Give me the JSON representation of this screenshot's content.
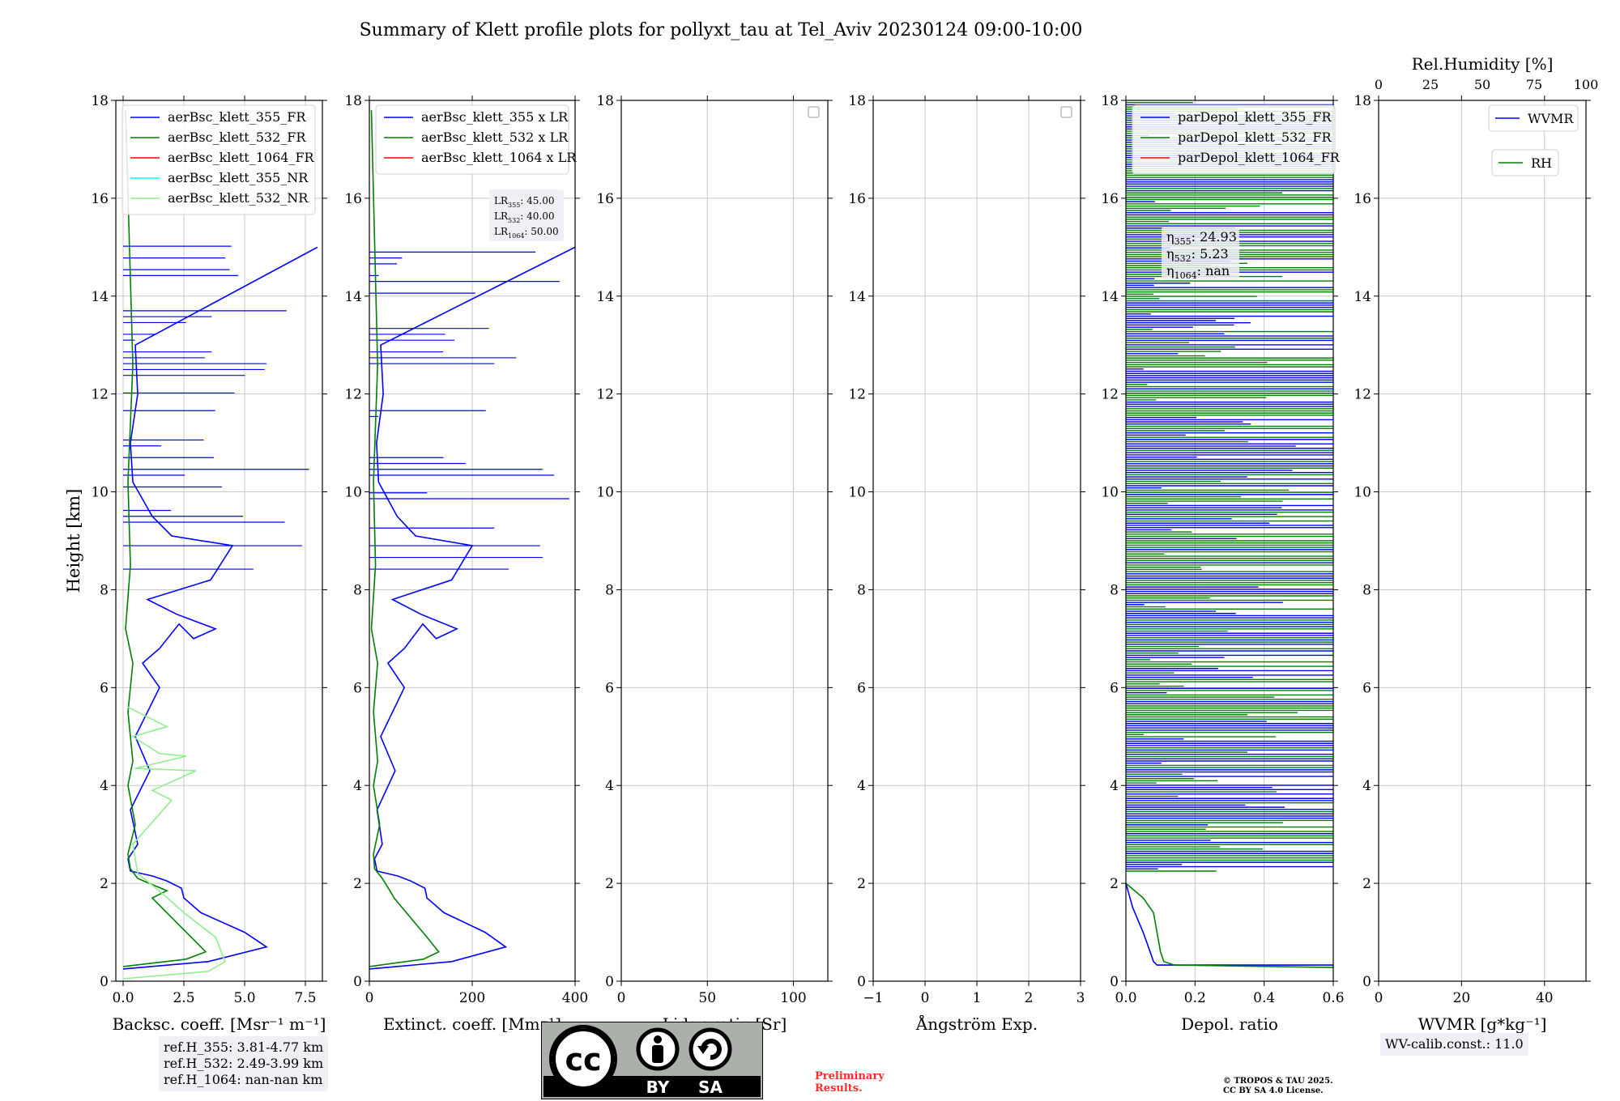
{
  "title": "Summary of Klett profile plots for pollyxt_tau at Tel_Aviv 20230124 09:00-10:00",
  "ref_heights": [
    "ref.H_355: 3.81-4.77 km",
    "ref.H_532: 2.49-3.99 km",
    "ref.H_1064: nan-nan km"
  ],
  "wv_calib": "WV-calib.const.: 11.0",
  "preliminary": [
    "Preliminary",
    "Results."
  ],
  "copyright": [
    "© TROPOS & TAU 2025.",
    "CC BY SA 4.0 License."
  ],
  "license_badge": {
    "left": "BY",
    "right": "SA",
    "logo": "cc-logo"
  },
  "colors": {
    "c355": "#0000ff",
    "c532": "#008000",
    "c1064": "#ff0000",
    "c355nr": "#00ffff",
    "c532nr": "#90ee90"
  },
  "chart_data": [
    {
      "type": "line",
      "id": "backscatter",
      "xlabel": "Backsc. coeff. [Msr⁻¹ m⁻¹]",
      "ylabel": "Height [km]",
      "xlim": [
        -0.3,
        8.2
      ],
      "ylim": [
        0,
        18
      ],
      "xticks": [
        0,
        2.5,
        5,
        7.5
      ],
      "xticklabels": [
        "0.0",
        "2.5",
        "5.0",
        "7.5"
      ],
      "yticks": [
        0,
        2,
        4,
        6,
        8,
        10,
        12,
        14,
        16,
        18
      ],
      "legend": [
        "aerBsc_klett_355_FR",
        "aerBsc_klett_532_FR",
        "aerBsc_klett_1064_FR",
        "aerBsc_klett_355_NR",
        "aerBsc_klett_532_NR"
      ],
      "legend_colors": [
        "#0000ff",
        "#008000",
        "#ff0000",
        "#00ffff",
        "#90ee90"
      ],
      "series": [
        {
          "name": "aerBsc_klett_355_FR",
          "color": "#0000ff",
          "x": [
            0.0,
            3.5,
            5.9,
            5.0,
            3.2,
            2.5,
            2.4,
            1.8,
            1.2,
            0.3,
            0.2,
            0.6,
            0.3,
            1.1,
            0.5,
            1.5,
            0.8,
            1.5,
            2.3,
            2.9,
            3.8,
            2.2,
            1.0,
            3.6,
            4.5,
            2.0,
            1.2,
            0.4,
            0.3,
            0.6,
            0.5,
            8.0
          ],
          "y": [
            0.25,
            0.4,
            0.7,
            1.0,
            1.4,
            1.7,
            1.9,
            2.05,
            2.15,
            2.25,
            2.5,
            2.8,
            3.5,
            4.3,
            5.0,
            6.0,
            6.5,
            6.8,
            7.3,
            7.0,
            7.2,
            7.5,
            7.8,
            8.2,
            8.9,
            9.1,
            9.5,
            10.2,
            11.0,
            12.0,
            13.0,
            15.0
          ]
        },
        {
          "name": "aerBsc_klett_532_FR",
          "color": "#008000",
          "x": [
            0.0,
            2.6,
            3.4,
            2.8,
            1.8,
            1.2,
            1.8,
            0.6,
            0.3,
            0.2,
            0.5,
            0.2,
            0.4,
            0.2,
            0.4,
            0.1,
            0.3,
            0.2,
            0.4,
            0.1
          ],
          "y": [
            0.3,
            0.45,
            0.6,
            0.9,
            1.4,
            1.7,
            1.85,
            2.1,
            2.3,
            2.6,
            3.2,
            4.0,
            4.5,
            5.5,
            6.5,
            7.2,
            8.5,
            10.2,
            12.6,
            17.8
          ]
        },
        {
          "name": "aerBsc_klett_532_NR",
          "color": "#90ee90",
          "x": [
            0.0,
            3.5,
            4.2,
            3.8,
            2.5,
            1.6,
            0.6,
            0.4,
            2.0,
            1.2,
            3.0,
            0.5,
            2.6,
            1.5,
            0.4,
            1.8,
            0.2
          ],
          "y": [
            0.05,
            0.2,
            0.4,
            0.9,
            1.4,
            1.8,
            2.2,
            2.8,
            3.7,
            3.9,
            4.3,
            4.35,
            4.6,
            4.65,
            5.0,
            5.2,
            5.6
          ]
        }
      ]
    },
    {
      "type": "line",
      "id": "extinction",
      "xlabel": "Extinct. coeff. [Mm⁻¹]",
      "xlim": [
        0,
        400
      ],
      "ylim": [
        0,
        18
      ],
      "xticks": [
        0,
        200,
        400
      ],
      "xticklabels": [
        "0",
        "200",
        "400"
      ],
      "yticks": [
        0,
        2,
        4,
        6,
        8,
        10,
        12,
        14,
        16,
        18
      ],
      "legend": [
        "aerBsc_klett_355 x LR",
        "aerBsc_klett_532 x LR",
        "aerBsc_klett_1064 x LR"
      ],
      "legend_colors": [
        "#0000ff",
        "#008000",
        "#ff0000"
      ],
      "lr_box": [
        "LR355: 45.00",
        "LR532: 40.00",
        "LR1064: 50.00"
      ],
      "series": [
        {
          "name": "aerBsc_klett_355 x LR",
          "color": "#0000ff",
          "x": [
            0,
            160,
            265,
            225,
            145,
            112,
            108,
            80,
            55,
            15,
            10,
            25,
            15,
            50,
            22,
            68,
            36,
            68,
            104,
            130,
            170,
            100,
            45,
            160,
            200,
            90,
            54,
            18,
            14,
            27,
            22,
            400
          ],
          "y": [
            0.25,
            0.4,
            0.7,
            1.0,
            1.4,
            1.7,
            1.9,
            2.05,
            2.15,
            2.25,
            2.5,
            2.8,
            3.5,
            4.3,
            5.0,
            6.0,
            6.5,
            6.8,
            7.3,
            7.0,
            7.2,
            7.5,
            7.8,
            8.2,
            8.9,
            9.1,
            9.5,
            10.2,
            11.0,
            12.0,
            13.0,
            15.0
          ]
        },
        {
          "name": "aerBsc_klett_532 x LR",
          "color": "#008000",
          "x": [
            0,
            105,
            135,
            112,
            72,
            48,
            40,
            25,
            10,
            8,
            20,
            8,
            16,
            8,
            16,
            4,
            12,
            8,
            16,
            4
          ],
          "y": [
            0.3,
            0.45,
            0.6,
            0.9,
            1.4,
            1.7,
            1.85,
            2.1,
            2.3,
            2.6,
            3.2,
            4.0,
            4.5,
            5.5,
            6.5,
            7.2,
            8.5,
            10.2,
            12.6,
            17.8
          ]
        }
      ]
    },
    {
      "type": "line",
      "id": "lidar-ratio",
      "xlabel": "Lidar ratio [Sr]",
      "xlim": [
        0,
        120
      ],
      "ylim": [
        0,
        18
      ],
      "xticks": [
        0,
        50,
        100
      ],
      "xticklabels": [
        "0",
        "50",
        "100"
      ],
      "yticks": [
        0,
        2,
        4,
        6,
        8,
        10,
        12,
        14,
        16,
        18
      ],
      "empty_legend": true,
      "series": []
    },
    {
      "type": "line",
      "id": "angstrom",
      "xlabel": "Ångström Exp.",
      "xlim": [
        -1,
        3
      ],
      "ylim": [
        0,
        18
      ],
      "xticks": [
        -1,
        0,
        1,
        2,
        3
      ],
      "xticklabels": [
        "−1",
        "0",
        "1",
        "2",
        "3"
      ],
      "yticks": [
        0,
        2,
        4,
        6,
        8,
        10,
        12,
        14,
        16,
        18
      ],
      "empty_legend": true,
      "series": []
    },
    {
      "type": "line",
      "id": "depol",
      "xlabel": "Depol. ratio",
      "xlim": [
        0,
        0.6
      ],
      "ylim": [
        0,
        18
      ],
      "xticks": [
        0,
        0.2,
        0.4,
        0.6
      ],
      "xticklabels": [
        "0.0",
        "0.2",
        "0.4",
        "0.6"
      ],
      "yticks": [
        0,
        2,
        4,
        6,
        8,
        10,
        12,
        14,
        16,
        18
      ],
      "legend": [
        "parDepol_klett_355_FR",
        "parDepol_klett_532_FR",
        "parDepol_klett_1064_FR"
      ],
      "legend_colors": [
        "#0000ff",
        "#008000",
        "#ff0000"
      ],
      "eta_box": [
        "η355: 24.93",
        "η532: 5.23",
        "η1064: nan"
      ],
      "noise_above_km": 2.25,
      "series": [
        {
          "name": "parDepol_klett_355_FR",
          "color": "#0000ff",
          "x": [
            0.0,
            0.02,
            0.05,
            0.07,
            0.08,
            0.09,
            0.6,
            0.6
          ],
          "y": [
            2.0,
            1.5,
            1.0,
            0.6,
            0.4,
            0.33,
            0.33,
            0.28
          ]
        },
        {
          "name": "parDepol_klett_532_FR",
          "color": "#008000",
          "x": [
            0.0,
            0.05,
            0.08,
            0.09,
            0.1,
            0.11,
            0.14,
            0.6
          ],
          "y": [
            2.0,
            1.7,
            1.4,
            1.0,
            0.6,
            0.4,
            0.33,
            0.28
          ]
        }
      ]
    },
    {
      "type": "line",
      "id": "wvmr",
      "xlabel": "WVMR [g*kg⁻¹]",
      "top_xlabel": "Rel.Humidity [%]",
      "xlim": [
        0,
        50
      ],
      "ylim": [
        0,
        18
      ],
      "xticks": [
        0,
        20,
        40
      ],
      "xticklabels": [
        "0",
        "20",
        "40"
      ],
      "top_xticks": [
        0,
        25,
        50,
        75,
        100
      ],
      "yticks": [
        0,
        2,
        4,
        6,
        8,
        10,
        12,
        14,
        16,
        18
      ],
      "legend": [
        "WVMR",
        "RH"
      ],
      "legend_colors": [
        "#0000ff",
        "#008000"
      ],
      "series": []
    }
  ]
}
